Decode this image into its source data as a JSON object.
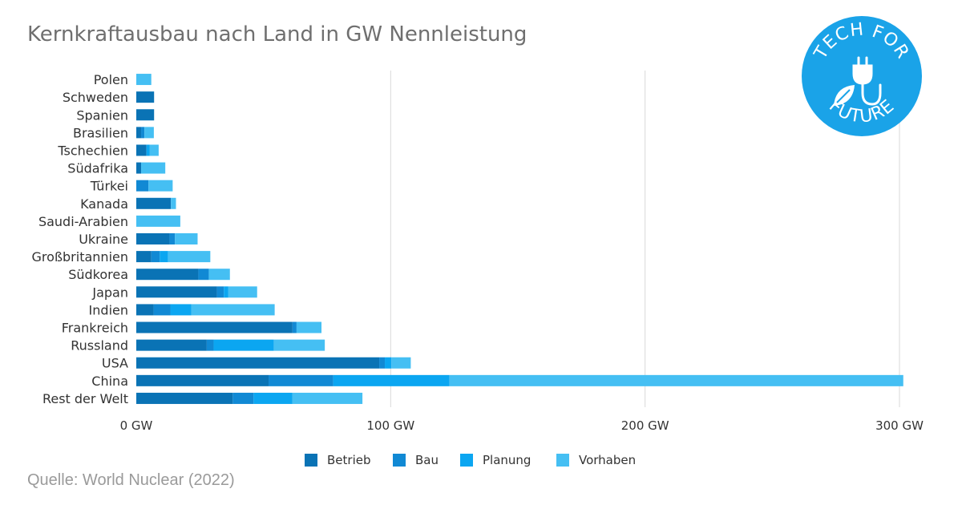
{
  "logo": {
    "top_text": "TECH FOR",
    "bottom_text": "FUTURE",
    "color": "#1aa3e8"
  },
  "source": "Quelle: World Nuclear (2022)",
  "chart_data": {
    "type": "bar",
    "orientation": "horizontal",
    "stacked": true,
    "title": "Kernkraftausbau nach Land in GW Nennleistung",
    "categories": [
      "Polen",
      "Schweden",
      "Spanien",
      "Brasilien",
      "Tschechien",
      "Südafrika",
      "Türkei",
      "Kanada",
      "Saudi-Arabien",
      "Ukraine",
      "Großbritannien",
      "Südkorea",
      "Japan",
      "Indien",
      "Frankreich",
      "Russland",
      "USA",
      "China",
      "Rest der Welt"
    ],
    "series": [
      {
        "name": "Betrieb",
        "color": "#0a73b5",
        "values": [
          0,
          7,
          7,
          1.9,
          4,
          1.9,
          0,
          13.6,
          0,
          13.1,
          5.9,
          24.4,
          31.7,
          6.8,
          61.4,
          27.7,
          95.5,
          52,
          37.9
        ]
      },
      {
        "name": "Bau",
        "color": "#1189d4",
        "values": [
          0,
          0,
          0,
          1.3,
          0,
          0,
          4.8,
          0,
          0,
          2.1,
          3.3,
          4.1,
          2.7,
          6.6,
          1.6,
          2.7,
          2.2,
          25.4,
          8.2
        ]
      },
      {
        "name": "Planung",
        "color": "#0ba6f1",
        "values": [
          0,
          0,
          0,
          0,
          1.2,
          0,
          0,
          0,
          0,
          0,
          3.3,
          0,
          1.8,
          8.2,
          0,
          23.7,
          2.6,
          45.7,
          15.2
        ]
      },
      {
        "name": "Vorhaben",
        "color": "#45bff3",
        "values": [
          5.9,
          0,
          0,
          3.7,
          3.6,
          9.5,
          9.5,
          2,
          17.3,
          8.9,
          16.6,
          8.3,
          11.3,
          32.8,
          9.8,
          20,
          7.6,
          178.4,
          27.6
        ]
      }
    ],
    "xlim": [
      0,
      300
    ],
    "xticks": [
      0,
      100,
      200,
      300
    ],
    "xtick_labels": [
      "0 GW",
      "100 GW",
      "200 GW",
      "300 GW"
    ],
    "grid": true,
    "legend_position": "bottom-center"
  }
}
